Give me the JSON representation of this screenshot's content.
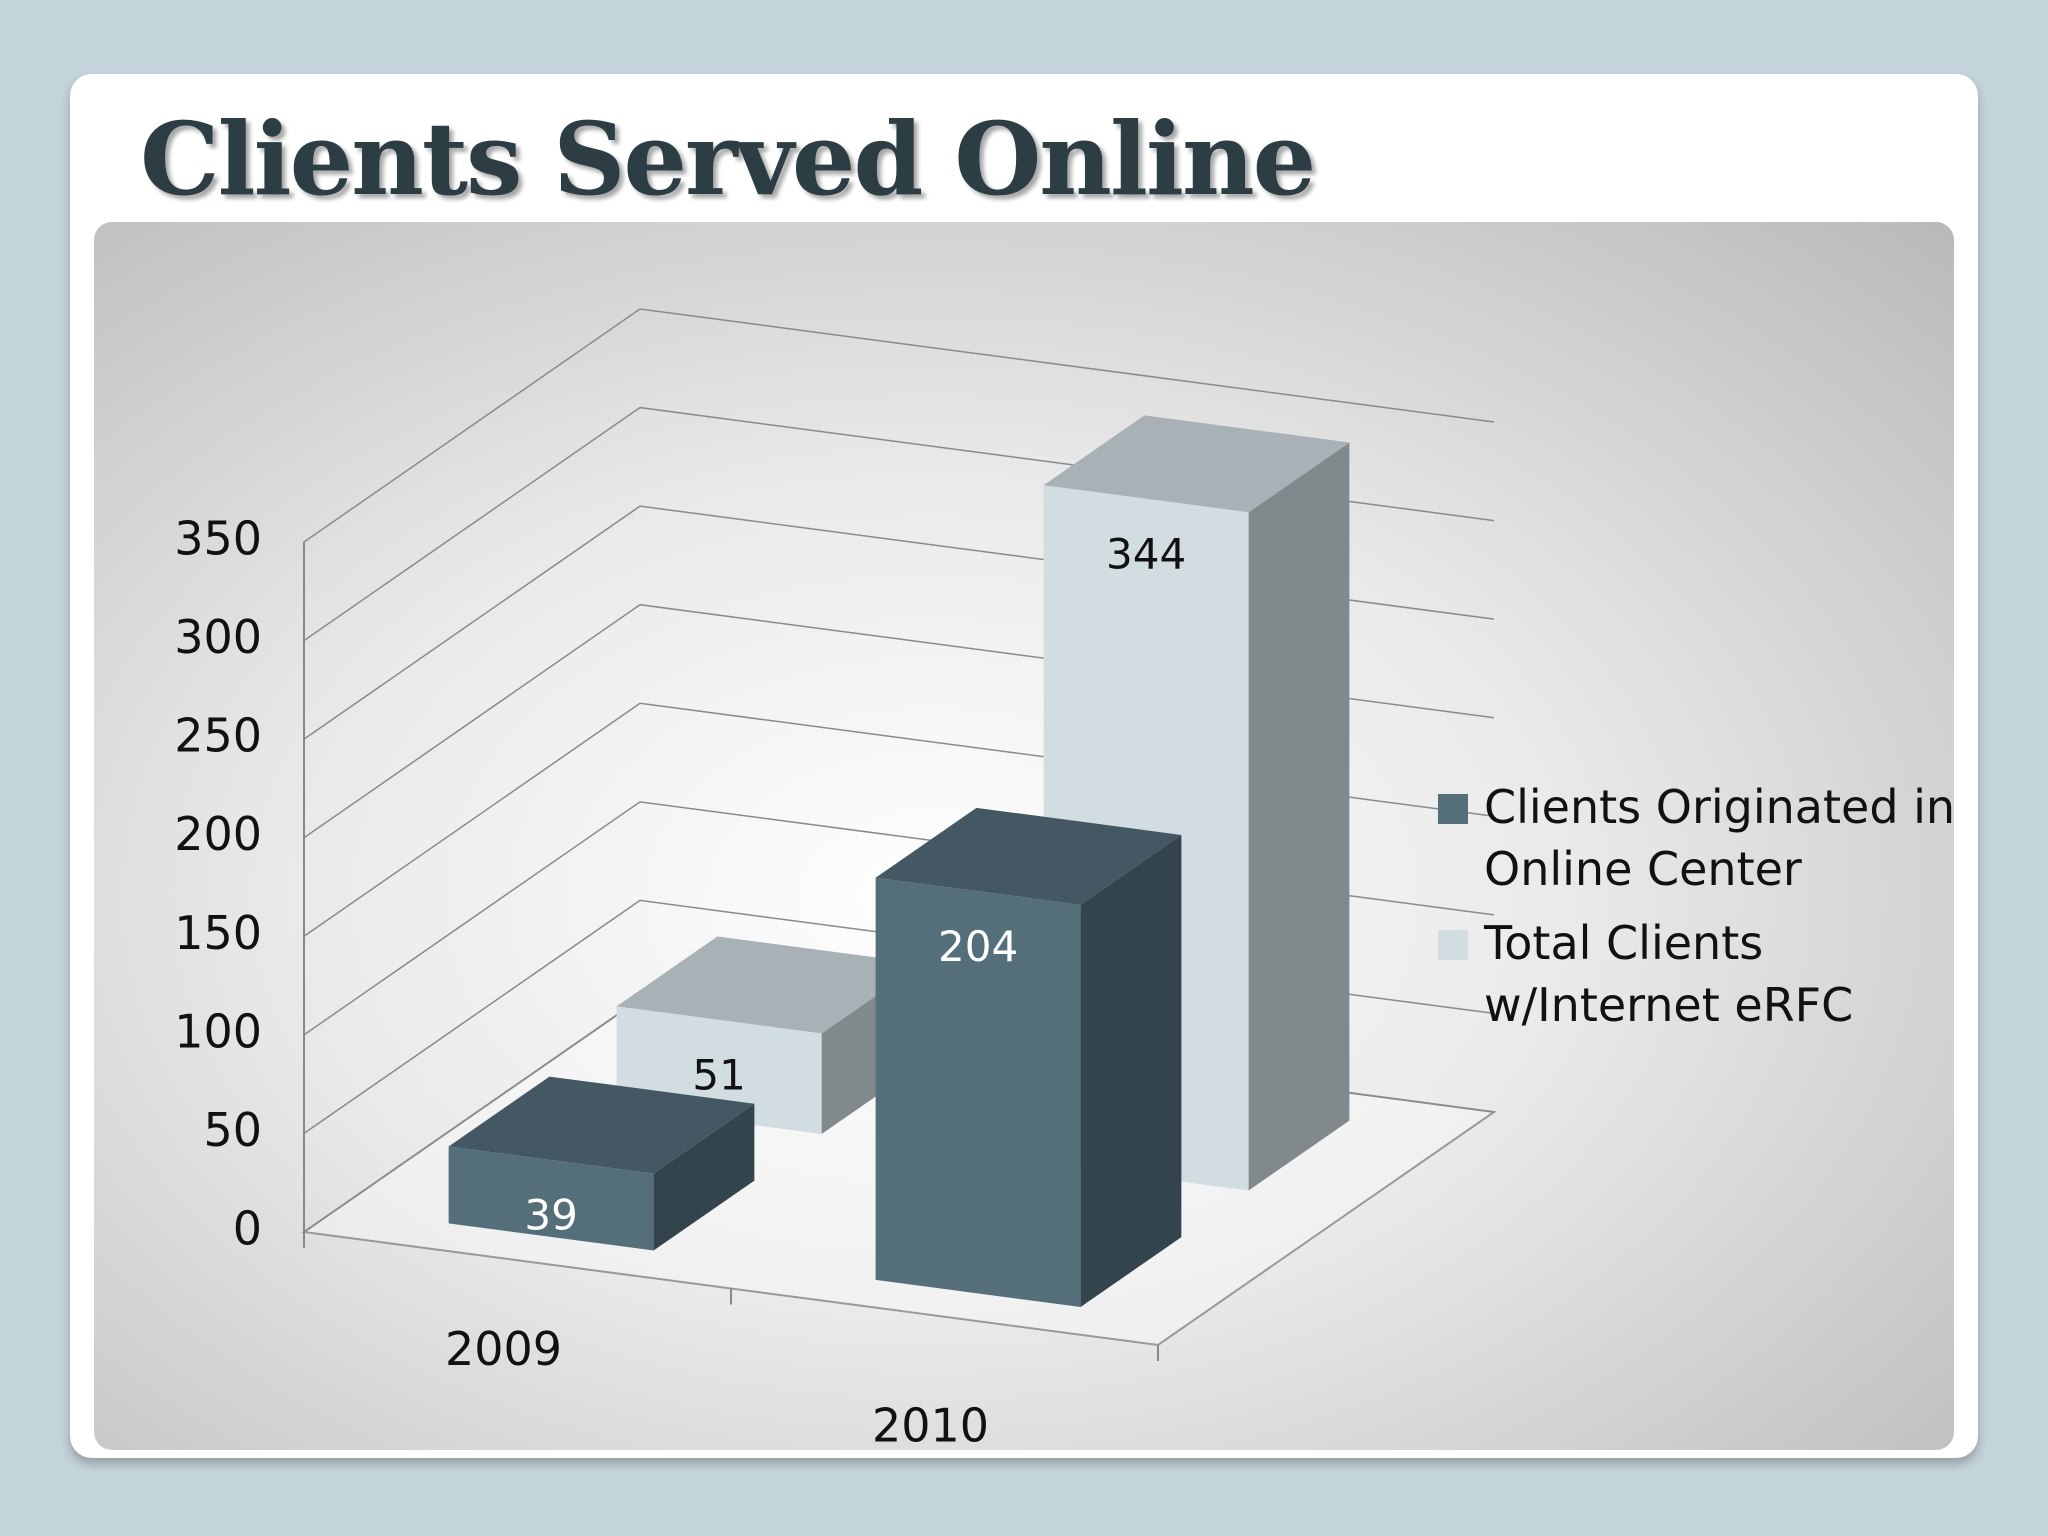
{
  "chart_data": {
    "type": "bar3d",
    "title": "Clients Served Online",
    "categories": [
      "2009",
      "2010"
    ],
    "series": [
      {
        "name": "Clients Originated in Online Center",
        "color": "#546e7a",
        "values": [
          39,
          204
        ]
      },
      {
        "name": "Total Clients w/Internet eRFC",
        "color": "#d2dde2",
        "values": [
          51,
          344
        ]
      }
    ],
    "ylim": [
      0,
      350
    ],
    "yticks": [
      0,
      50,
      100,
      150,
      200,
      250,
      300,
      350
    ],
    "grid": true,
    "legend": "right"
  }
}
